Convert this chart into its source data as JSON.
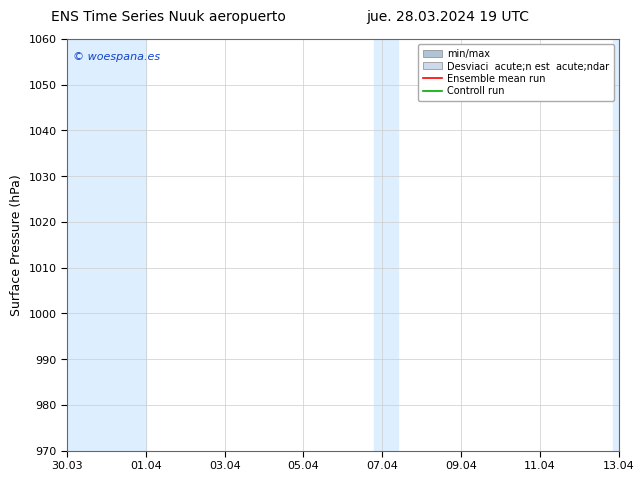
{
  "title_left": "ENS Time Series Nuuk aeropuerto",
  "title_right": "jue. 28.03.2024 19 UTC",
  "ylabel": "Surface Pressure (hPa)",
  "ylim": [
    970,
    1060
  ],
  "yticks": [
    970,
    980,
    990,
    1000,
    1010,
    1020,
    1030,
    1040,
    1050,
    1060
  ],
  "xtick_labels": [
    "30.03",
    "01.04",
    "03.04",
    "05.04",
    "07.04",
    "09.04",
    "11.04",
    "13.04"
  ],
  "watermark": "© woespana.es",
  "shaded_color": "#ddeeff",
  "bg_color": "#ffffff",
  "plot_bg_color": "#ffffff",
  "grid_color": "#cccccc",
  "title_fontsize": 10,
  "tick_fontsize": 8,
  "ylabel_fontsize": 9,
  "legend_fontsize": 7,
  "legend_label_minmax": "min/max",
  "legend_label_std": "Desviaci  acute;n est  acute;ndar",
  "legend_label_ens": "Ensemble mean run",
  "legend_label_ctrl": "Controll run",
  "legend_color_minmax": "#b0c4d8",
  "legend_color_std": "#ccdaeb",
  "legend_color_ens": "#ff0000",
  "legend_color_ctrl": "#00aa00"
}
